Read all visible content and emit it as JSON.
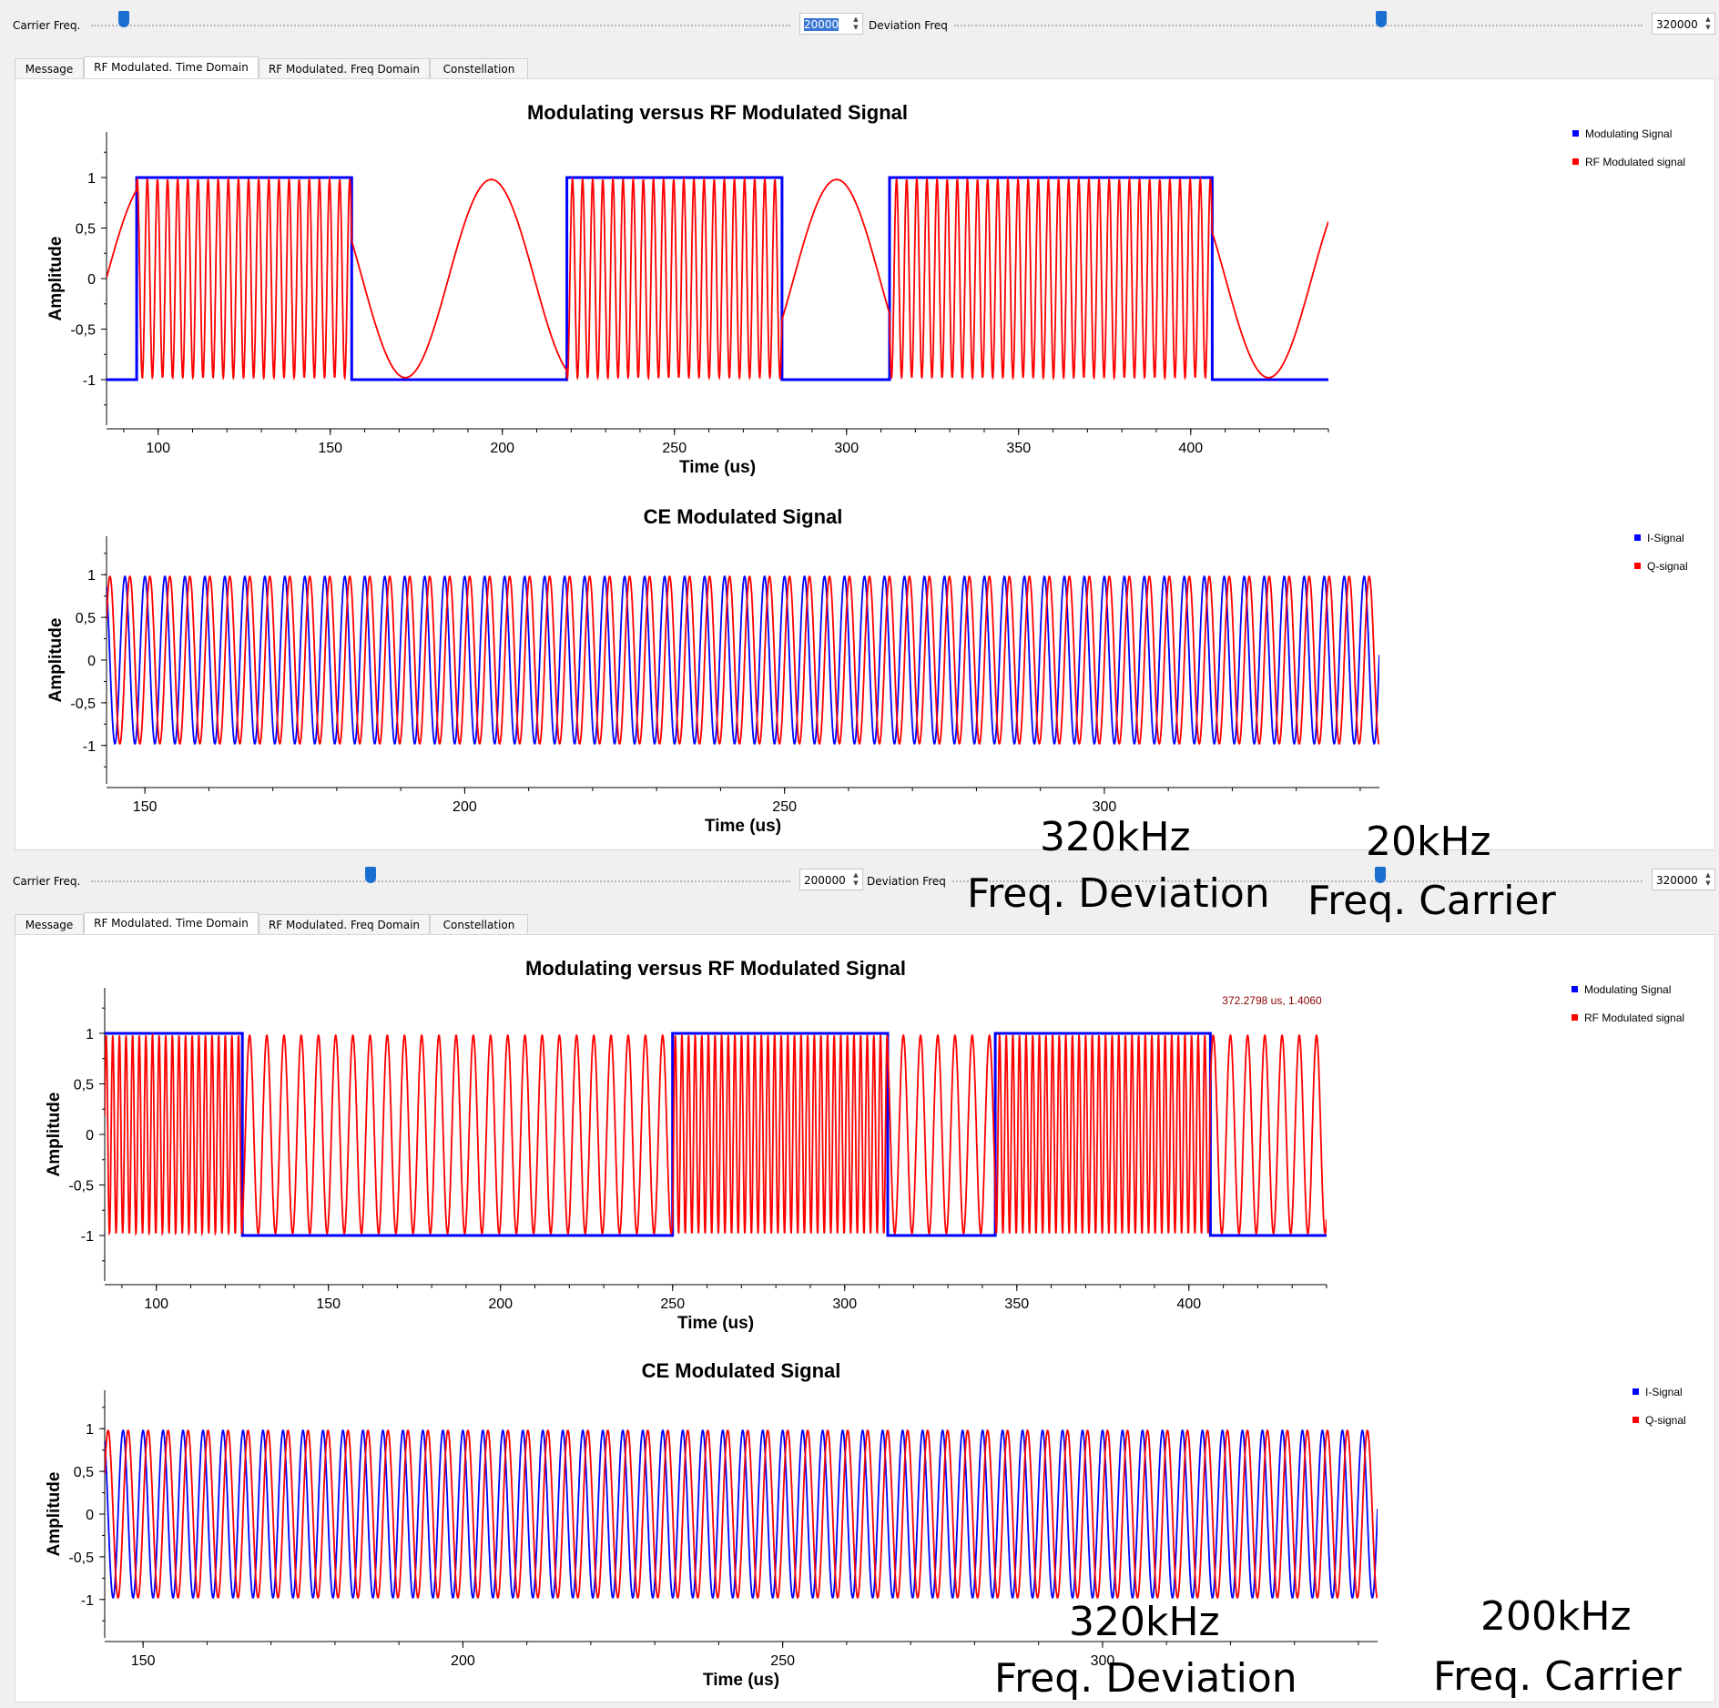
{
  "panels": [
    {
      "controls": {
        "carrier_label": "Carrier Freq.",
        "carrier_value": "20000",
        "carrier_slider_fraction": 0.008,
        "deviation_label": "Deviation Freq",
        "deviation_value": "320000",
        "deviation_slider_fraction": 0.62
      },
      "tabs": [
        "Message",
        "RF Modulated. Time Domain",
        "RF Modulated. Freq Domain",
        "Constellation"
      ],
      "active_tab": 1,
      "annotations": {
        "deviation_value": "320kHz",
        "deviation_label": "Freq. Deviation",
        "carrier_value": "20kHz",
        "carrier_label": "Freq. Carrier"
      }
    },
    {
      "controls": {
        "carrier_label": "Carrier Freq.",
        "carrier_value": "200000",
        "carrier_slider_fraction": 0.4,
        "deviation_label": "Deviation Freq",
        "deviation_value": "320000",
        "deviation_slider_fraction": 0.62
      },
      "tabs": [
        "Message",
        "RF Modulated. Time Domain",
        "RF Modulated. Freq Domain",
        "Constellation"
      ],
      "active_tab": 1,
      "annotations": {
        "deviation_value": "320kHz",
        "deviation_label": "Freq. Deviation",
        "carrier_value": "200kHz",
        "carrier_label": "Freq. Carrier"
      }
    }
  ],
  "chart_data": [
    {
      "type": "line",
      "title": "Modulating versus RF Modulated Signal",
      "xlabel": "Time (us)",
      "ylabel": "Amplitude",
      "xlim": [
        85,
        440
      ],
      "ylim": [
        -1.45,
        1.45
      ],
      "xticks": [
        100,
        150,
        200,
        250,
        300,
        350,
        400
      ],
      "ytick_labels": [
        "1",
        "0,5",
        "0",
        "-0,5",
        "-1"
      ],
      "ytick_values": [
        1,
        0.5,
        0,
        -0.5,
        -1
      ],
      "legend": "right",
      "series": [
        {
          "name": "Modulating Signal",
          "color": "#0000ff",
          "kind": "square",
          "x_start": 85,
          "x_end": 440,
          "transitions": [
            93.75,
            156.25,
            218.75,
            281.25,
            312.5,
            406.25
          ],
          "levels": [
            -1,
            1,
            -1,
            1,
            -1,
            1,
            -1
          ]
        },
        {
          "name": "RF Modulated signal",
          "color": "#ff0000",
          "kind": "fm",
          "carrier_khz": 20,
          "deviation_khz": 320
        }
      ]
    },
    {
      "type": "line",
      "title": "CE Modulated Signal",
      "xlabel": "Time (us)",
      "ylabel": "Amplitude",
      "xlim": [
        144,
        343
      ],
      "ylim": [
        -1.45,
        1.45
      ],
      "xticks": [
        150,
        200,
        250,
        300
      ],
      "ytick_labels": [
        "1",
        "0,5",
        "0",
        "-0,5",
        "-1"
      ],
      "ytick_values": [
        1,
        0.5,
        0,
        -0.5,
        -1
      ],
      "legend": "right",
      "series": [
        {
          "name": "I-Signal",
          "color": "#0000ff",
          "kind": "cos",
          "freq_khz": 320
        },
        {
          "name": "Q-signal",
          "color": "#ff0000",
          "kind": "sin",
          "freq_khz": 320
        }
      ]
    },
    {
      "type": "line",
      "title": "Modulating versus RF Modulated Signal",
      "xlabel": "Time (us)",
      "ylabel": "Amplitude",
      "xlim": [
        85,
        440
      ],
      "ylim": [
        -1.45,
        1.45
      ],
      "xticks": [
        100,
        150,
        200,
        250,
        300,
        350,
        400
      ],
      "ytick_labels": [
        "1",
        "0,5",
        "0",
        "-0,5",
        "-1"
      ],
      "ytick_values": [
        1,
        0.5,
        0,
        -0.5,
        -1
      ],
      "legend": "right",
      "readout": "372.2798 us, 1.4060",
      "series": [
        {
          "name": "Modulating Signal",
          "color": "#0000ff",
          "kind": "square",
          "x_start": 85,
          "x_end": 440,
          "transitions": [
            125,
            250,
            312.5,
            343.75,
            406.25
          ],
          "levels": [
            1,
            -1,
            1,
            -1,
            1,
            -1
          ]
        },
        {
          "name": "RF Modulated signal",
          "color": "#ff0000",
          "kind": "fm",
          "carrier_khz": 200,
          "deviation_khz": 320
        }
      ]
    },
    {
      "type": "line",
      "title": "CE Modulated Signal",
      "xlabel": "Time (us)",
      "ylabel": "Amplitude",
      "xlim": [
        144,
        343
      ],
      "ylim": [
        -1.45,
        1.45
      ],
      "xticks": [
        150,
        200,
        250,
        300
      ],
      "ytick_labels": [
        "1",
        "0,5",
        "0",
        "-0,5",
        "-1"
      ],
      "ytick_values": [
        1,
        0.5,
        0,
        -0.5,
        -1
      ],
      "legend": "right",
      "series": [
        {
          "name": "I-Signal",
          "color": "#0000ff",
          "kind": "cos",
          "freq_khz": 320
        },
        {
          "name": "Q-signal",
          "color": "#ff0000",
          "kind": "sin",
          "freq_khz": 320
        }
      ]
    }
  ]
}
